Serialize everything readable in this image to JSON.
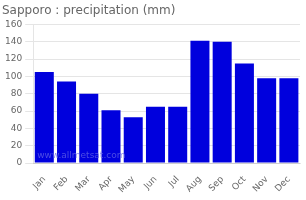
{
  "chart_data": {
    "type": "bar",
    "title": "Sapporo : precipitation (mm)",
    "categories": [
      "Jan",
      "Feb",
      "Mar",
      "Apr",
      "May",
      "Jun",
      "Jul",
      "Aug",
      "Sep",
      "Oct",
      "Nov",
      "Dec"
    ],
    "values": [
      105,
      94,
      80,
      61,
      53,
      65,
      65,
      141,
      140,
      115,
      98,
      98
    ],
    "color": "#0000dd",
    "ylim": [
      0,
      160
    ],
    "yticks": [
      0,
      20,
      40,
      60,
      80,
      100,
      120,
      140,
      160
    ],
    "grid": true,
    "annotations": [
      "www.allmetsat.com"
    ]
  }
}
